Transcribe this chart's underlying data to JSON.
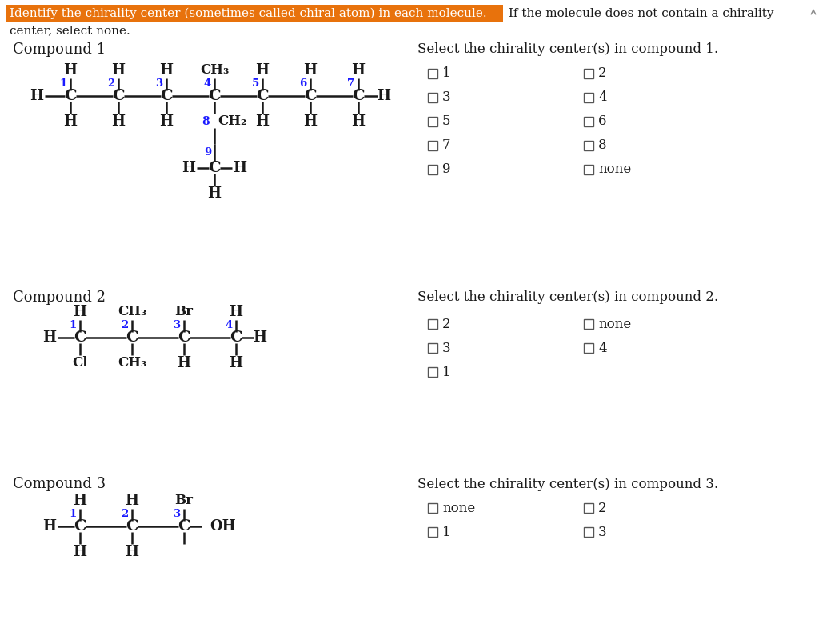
{
  "title_highlighted": "Identify the chirality center (sometimes called chiral atom) in each molecule.",
  "highlight_color": "#E8720C",
  "background_color": "#FFFFFF",
  "blue_color": "#1a1aff",
  "black_color": "#1a1a1a",
  "gray_color": "#555555",
  "compound1_label": "Compound 1",
  "compound2_label": "Compound 2",
  "compound3_label": "Compound 3",
  "select1": "Select the chirality center(s) in compound 1.",
  "select2": "Select the chirality center(s) in compound 2.",
  "select3": "Select the chirality center(s) in compound 3.",
  "checkboxes1_left": [
    "1",
    "3",
    "5",
    "7",
    "9"
  ],
  "checkboxes1_right": [
    "2",
    "4",
    "6",
    "8",
    "none"
  ],
  "checkboxes2_left": [
    "2",
    "3",
    "1"
  ],
  "checkboxes2_right": [
    "none",
    "4",
    ""
  ],
  "checkboxes3_left": [
    "none",
    "1"
  ],
  "checkboxes3_right": [
    "2",
    "3"
  ]
}
